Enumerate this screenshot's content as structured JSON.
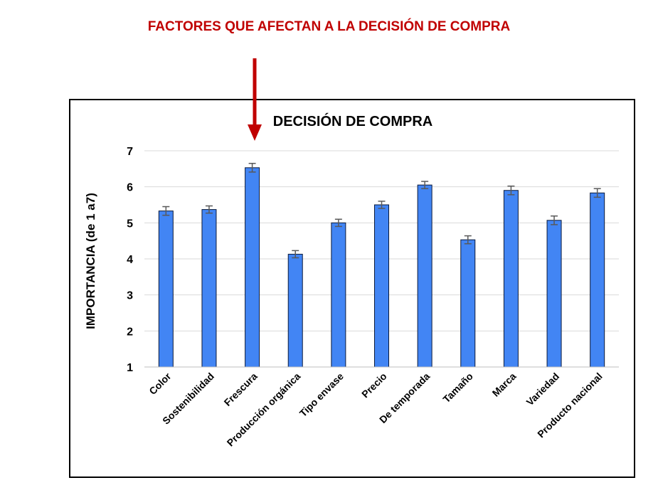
{
  "header": {
    "title": "FACTORES QUE AFECTAN A LA DECISIÓN DE COMPRA"
  },
  "colors": {
    "bar": "#4285f4",
    "bar_outline": "#0b1a3a",
    "arrow": "#c00000",
    "grid": "#d9d9d9",
    "error_bar": "#595959"
  },
  "chart_data": {
    "type": "bar",
    "title": "DECISIÓN DE COMPRA",
    "xlabel": "",
    "ylabel": "IMPORTANCIA  (de 1 a7)",
    "ylim": [
      1,
      7
    ],
    "yticks": [
      1,
      2,
      3,
      4,
      5,
      6,
      7
    ],
    "grid": true,
    "categories": [
      "Color",
      "Sostenibilidad",
      "Frescura",
      "Producción orgánica",
      "Tipo envase",
      "Precio",
      "De temporada",
      "Tamaño",
      "Marca",
      "Variedad",
      "Producto nacional"
    ],
    "values": [
      5.33,
      5.37,
      6.53,
      4.13,
      5.0,
      5.5,
      6.05,
      4.53,
      5.9,
      5.07,
      5.83
    ],
    "errors": [
      0.12,
      0.1,
      0.12,
      0.1,
      0.1,
      0.1,
      0.1,
      0.11,
      0.12,
      0.12,
      0.12
    ]
  }
}
